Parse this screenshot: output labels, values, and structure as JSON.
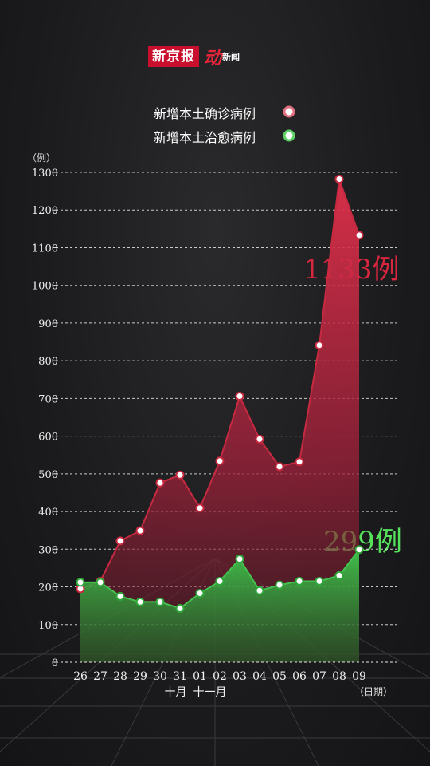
{
  "brand": {
    "name": "新京报",
    "sub_mark": "动",
    "sub_text": "新闻"
  },
  "legend": [
    {
      "label": "新增本土确诊病例",
      "color": "#d63a4f"
    },
    {
      "label": "新增本土治愈病例",
      "color": "#3fbf4a"
    }
  ],
  "y_unit": "（例）",
  "x_unit": "（日期）",
  "month_labels": {
    "oct": "十月",
    "nov": "十一月"
  },
  "callouts": {
    "confirmed": "1133例",
    "cured": "299例"
  },
  "chart_data": {
    "type": "area",
    "categories": [
      "26",
      "27",
      "28",
      "29",
      "30",
      "31",
      "01",
      "02",
      "03",
      "04",
      "05",
      "06",
      "07",
      "08",
      "09"
    ],
    "series": [
      {
        "name": "新增本土确诊病例",
        "color": "#d63a4f",
        "values": [
          195,
          215,
          322,
          349,
          476,
          497,
          409,
          534,
          706,
          592,
          519,
          532,
          841,
          1282,
          1133
        ]
      },
      {
        "name": "新增本土治愈病例",
        "color": "#3fbf4a",
        "values": [
          212,
          212,
          175,
          160,
          160,
          143,
          183,
          215,
          274,
          190,
          205,
          215,
          215,
          230,
          299
        ]
      }
    ],
    "ylim": [
      0,
      1300
    ],
    "yticks": [
      0,
      100,
      200,
      300,
      400,
      500,
      600,
      700,
      800,
      900,
      1000,
      1100,
      1200,
      1300
    ],
    "grid": true,
    "legend_position": "top-right"
  }
}
